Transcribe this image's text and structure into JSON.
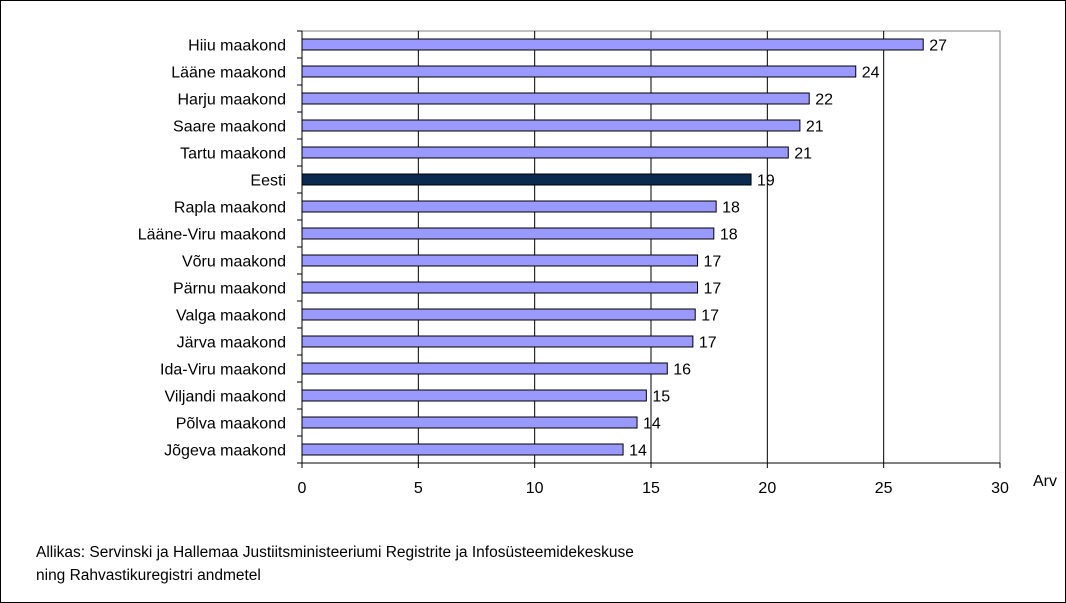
{
  "chart_data": {
    "type": "bar",
    "orientation": "horizontal",
    "categories": [
      "Hiiu maakond",
      "Lääne maakond",
      "Harju maakond",
      "Saare maakond",
      "Tartu maakond",
      "Eesti",
      "Rapla maakond",
      "Lääne-Viru maakond",
      "Võru maakond",
      "Pärnu maakond",
      "Valga maakond",
      "Järva maakond",
      "Ida-Viru maakond",
      "Viljandi maakond",
      "Põlva maakond",
      "Jõgeva maakond"
    ],
    "values": [
      26.7,
      23.8,
      21.8,
      21.4,
      20.9,
      19.3,
      17.8,
      17.7,
      17.0,
      17.0,
      16.9,
      16.8,
      15.7,
      14.8,
      14.4,
      13.8
    ],
    "data_labels": [
      "27",
      "24",
      "22",
      "21",
      "21",
      "19",
      "18",
      "18",
      "17",
      "17",
      "17",
      "17",
      "16",
      "15",
      "14",
      "14"
    ],
    "highlight_category": "Eesti",
    "xlabel": "Arv",
    "xlim": [
      0,
      30
    ],
    "xticks": [
      "0",
      "5",
      "10",
      "15",
      "20",
      "25",
      "30"
    ],
    "grid": "vertical",
    "colors": {
      "bar": "#9999FF",
      "highlight": "#0A2A50",
      "outline": "#000000",
      "plot_border": "#808080"
    }
  },
  "source": {
    "line1": "Allikas: Servinski ja Hallemaa Justiitsministeeriumi Registrite ja Infosüsteemidekeskuse",
    "line2": "ning Rahvastikuregistri andmetel"
  }
}
